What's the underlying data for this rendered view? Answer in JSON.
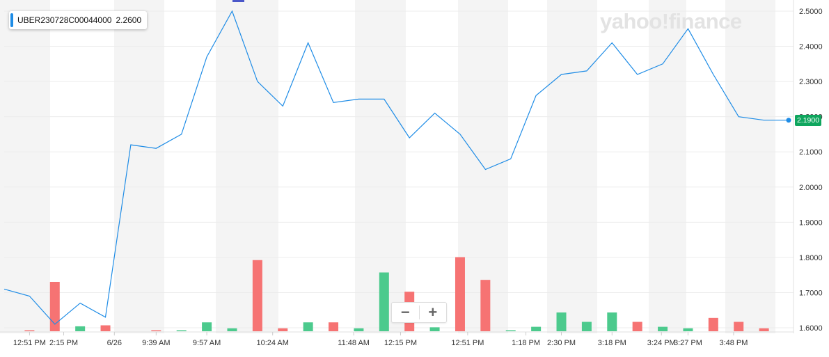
{
  "legend": {
    "symbol": "UBER230728C00044000",
    "value": "2.2600"
  },
  "watermark": "yahoo!finance",
  "zoom": {
    "minus": "−",
    "plus": "+"
  },
  "colors": {
    "line": "#1e8ce6",
    "volume_up": "#4cca8d",
    "volume_down": "#f67373",
    "band": "#f4f4f4",
    "last_badge": "#0fa65e"
  },
  "last_price_label": "2.1900",
  "chart_data": {
    "type": "line",
    "series": [
      {
        "values": [
          1.71,
          1.69,
          1.61,
          1.67,
          1.63,
          2.12,
          2.11,
          2.15,
          2.37,
          2.5,
          2.3,
          2.23,
          2.41,
          2.24,
          2.25,
          2.25,
          2.14,
          2.21,
          2.15,
          2.05,
          2.08,
          2.26,
          2.32,
          2.33,
          2.41,
          2.32,
          2.35,
          2.45,
          2.32,
          2.2,
          2.19,
          2.19
        ]
      }
    ],
    "volume": {
      "bars": [
        {
          "i": 1,
          "v": 0.02,
          "dir": "down"
        },
        {
          "i": 2,
          "v": 1.0,
          "dir": "down"
        },
        {
          "i": 3,
          "v": 0.1,
          "dir": "up"
        },
        {
          "i": 4,
          "v": 0.12,
          "dir": "down"
        },
        {
          "i": 6,
          "v": 0.02,
          "dir": "down"
        },
        {
          "i": 7,
          "v": 0.02,
          "dir": "up"
        },
        {
          "i": 8,
          "v": 0.18,
          "dir": "up"
        },
        {
          "i": 9,
          "v": 0.06,
          "dir": "up"
        },
        {
          "i": 10,
          "v": 1.44,
          "dir": "down"
        },
        {
          "i": 11,
          "v": 0.06,
          "dir": "down"
        },
        {
          "i": 12,
          "v": 0.18,
          "dir": "up"
        },
        {
          "i": 13,
          "v": 0.18,
          "dir": "down"
        },
        {
          "i": 14,
          "v": 0.06,
          "dir": "up"
        },
        {
          "i": 15,
          "v": 1.19,
          "dir": "up"
        },
        {
          "i": 16,
          "v": 0.8,
          "dir": "down"
        },
        {
          "i": 17,
          "v": 0.08,
          "dir": "up"
        },
        {
          "i": 18,
          "v": 1.5,
          "dir": "down"
        },
        {
          "i": 19,
          "v": 1.04,
          "dir": "down"
        },
        {
          "i": 20,
          "v": 0.02,
          "dir": "up"
        },
        {
          "i": 21,
          "v": 0.09,
          "dir": "up"
        },
        {
          "i": 22,
          "v": 0.38,
          "dir": "up"
        },
        {
          "i": 23,
          "v": 0.19,
          "dir": "up"
        },
        {
          "i": 24,
          "v": 0.38,
          "dir": "up"
        },
        {
          "i": 25,
          "v": 0.19,
          "dir": "down"
        },
        {
          "i": 26,
          "v": 0.09,
          "dir": "up"
        },
        {
          "i": 27,
          "v": 0.06,
          "dir": "up"
        },
        {
          "i": 28,
          "v": 0.27,
          "dir": "down"
        },
        {
          "i": 29,
          "v": 0.19,
          "dir": "down"
        },
        {
          "i": 30,
          "v": 0.06,
          "dir": "down"
        }
      ]
    },
    "x_tick_labels": [
      "12:51 PM",
      "2:15 PM",
      "6/26",
      "9:39 AM",
      "9:57 AM",
      "10:24 AM",
      "11:48 AM",
      "12:15 PM",
      "12:51 PM",
      "1:18 PM",
      "2:30 PM",
      "3:18 PM",
      "3:24 PM",
      "3:27 PM",
      "3:48 PM"
    ],
    "x_tick_index": [
      1,
      2.35,
      4.35,
      6,
      8,
      10.6,
      13.8,
      15.65,
      18.3,
      20.6,
      22,
      24,
      25.95,
      27,
      28.8
    ],
    "y_ticks": [
      "2.5000",
      "2.4000",
      "2.3000",
      "2.2000",
      "2.1000",
      "2.0000",
      "1.9000",
      "1.8000",
      "1.7000",
      "1.6000"
    ],
    "ylim": [
      1.6,
      2.5
    ],
    "grid": true
  }
}
